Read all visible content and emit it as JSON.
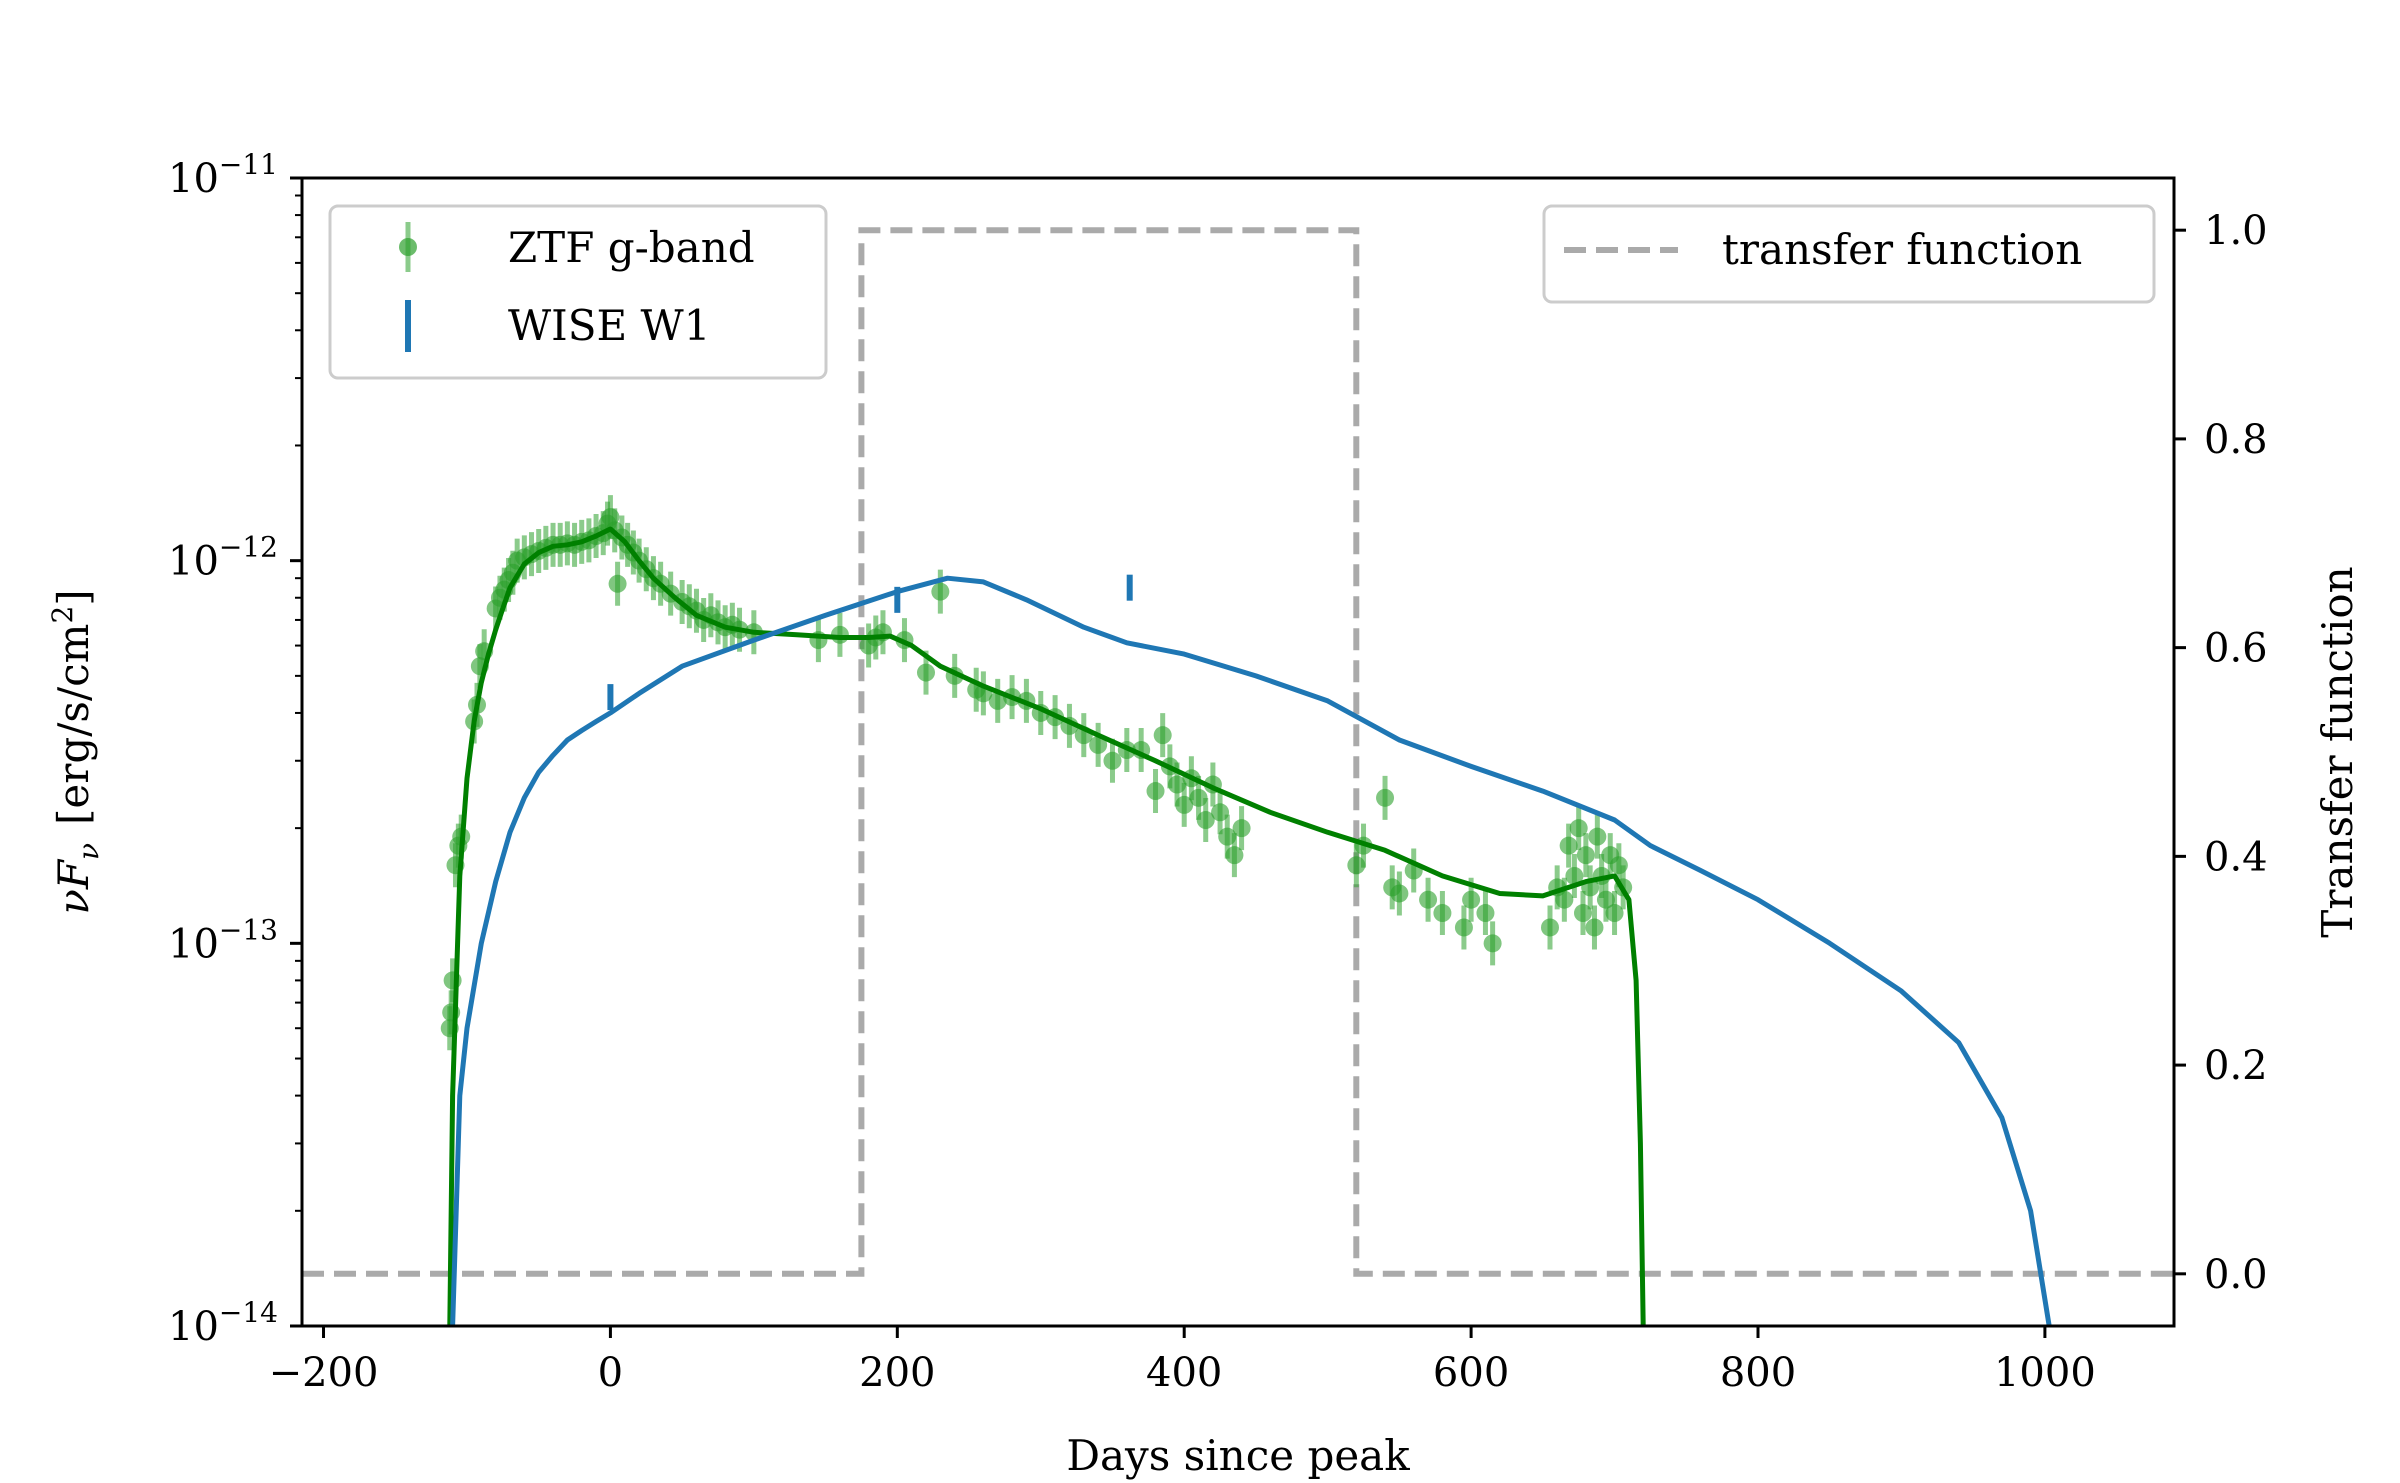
{
  "chart_data": {
    "type": "scatter",
    "x_axis": {
      "label": "Days since peak",
      "range": [
        -215,
        1090
      ],
      "ticks": [
        -200,
        0,
        200,
        400,
        600,
        800,
        1000
      ],
      "tick_labels": [
        "−200",
        "0",
        "200",
        "400",
        "600",
        "800",
        "1000"
      ]
    },
    "y_left": {
      "label_main": "νF",
      "label_sub": "ν",
      "label_units": "[erg/s/cm",
      "label_units_sup": "2",
      "label_units_end": "]",
      "scale": "log",
      "range": [
        1e-14,
        1e-11
      ],
      "ticks": [
        {
          "value": 1e-14,
          "base": "10",
          "exp": "−14"
        },
        {
          "value": 1e-13,
          "base": "10",
          "exp": "−13"
        },
        {
          "value": 1e-12,
          "base": "10",
          "exp": "−12"
        },
        {
          "value": 1e-11,
          "base": "10",
          "exp": "−11"
        }
      ]
    },
    "y_right": {
      "label": "Transfer function",
      "range": [
        -0.05,
        1.05
      ],
      "ticks": [
        0.0,
        0.2,
        0.4,
        0.6,
        0.8,
        1.0
      ],
      "tick_labels": [
        "0.0",
        "0.2",
        "0.4",
        "0.6",
        "0.8",
        "1.0"
      ]
    },
    "legends": {
      "left": [
        {
          "label": "ZTF g-band",
          "color": "#2ca02c",
          "marker": "point-errorbar"
        },
        {
          "label": "WISE W1",
          "color": "#1f77b4",
          "marker": "errorbar-only"
        }
      ],
      "right": [
        {
          "label": "transfer function",
          "color": "#aaaaaa",
          "marker": "dashed-line"
        }
      ]
    },
    "colors": {
      "ztf": "#2ca02c",
      "ztf_model": "#008000",
      "wise": "#1f77b4",
      "transfer": "#aaaaaa"
    },
    "series": [
      {
        "name": "ZTF g-band",
        "kind": "points",
        "axis": "left",
        "points": [
          [
            -112,
            6e-14
          ],
          [
            -111,
            6.6e-14
          ],
          [
            -110,
            8e-14
          ],
          [
            -108,
            1.6e-13
          ],
          [
            -106,
            1.8e-13
          ],
          [
            -104,
            1.9e-13
          ],
          [
            -95,
            3.8e-13
          ],
          [
            -93,
            4.2e-13
          ],
          [
            -91,
            5.3e-13
          ],
          [
            -88,
            5.8e-13
          ],
          [
            -80,
            7.5e-13
          ],
          [
            -77,
            8e-13
          ],
          [
            -74,
            8.4e-13
          ],
          [
            -71,
            8.9e-13
          ],
          [
            -68,
            9.3e-13
          ],
          [
            -65,
            1e-12
          ],
          [
            -60,
            1.02e-12
          ],
          [
            -55,
            1.04e-12
          ],
          [
            -50,
            1.06e-12
          ],
          [
            -45,
            1.08e-12
          ],
          [
            -40,
            1.1e-12
          ],
          [
            -35,
            1.1e-12
          ],
          [
            -30,
            1.11e-12
          ],
          [
            -25,
            1.1e-12
          ],
          [
            -20,
            1.12e-12
          ],
          [
            -15,
            1.13e-12
          ],
          [
            -10,
            1.16e-12
          ],
          [
            -5,
            1.18e-12
          ],
          [
            -2,
            1.25e-12
          ],
          [
            0,
            1.3e-12
          ],
          [
            3,
            1.2e-12
          ],
          [
            5,
            8.7e-13
          ],
          [
            8,
            1.15e-12
          ],
          [
            12,
            1.1e-12
          ],
          [
            16,
            1.05e-12
          ],
          [
            20,
            1e-12
          ],
          [
            25,
            9.5e-13
          ],
          [
            30,
            9e-13
          ],
          [
            35,
            8.7e-13
          ],
          [
            42,
            8.2e-13
          ],
          [
            50,
            7.8e-13
          ],
          [
            55,
            7.6e-13
          ],
          [
            60,
            7.4e-13
          ],
          [
            65,
            7e-13
          ],
          [
            70,
            7.2e-13
          ],
          [
            75,
            6.9e-13
          ],
          [
            80,
            6.7e-13
          ],
          [
            85,
            6.8e-13
          ],
          [
            90,
            6.6e-13
          ],
          [
            100,
            6.5e-13
          ],
          [
            145,
            6.2e-13
          ],
          [
            160,
            6.4e-13
          ],
          [
            180,
            6e-13
          ],
          [
            185,
            6.3e-13
          ],
          [
            190,
            6.5e-13
          ],
          [
            205,
            6.2e-13
          ],
          [
            220,
            5.1e-13
          ],
          [
            230,
            8.3e-13
          ],
          [
            240,
            5e-13
          ],
          [
            255,
            4.6e-13
          ],
          [
            260,
            4.5e-13
          ],
          [
            270,
            4.3e-13
          ],
          [
            280,
            4.4e-13
          ],
          [
            290,
            4.3e-13
          ],
          [
            300,
            4e-13
          ],
          [
            310,
            3.9e-13
          ],
          [
            320,
            3.7e-13
          ],
          [
            330,
            3.5e-13
          ],
          [
            340,
            3.3e-13
          ],
          [
            350,
            3e-13
          ],
          [
            360,
            3.2e-13
          ],
          [
            370,
            3.2e-13
          ],
          [
            380,
            2.5e-13
          ],
          [
            385,
            3.5e-13
          ],
          [
            390,
            2.9e-13
          ],
          [
            395,
            2.6e-13
          ],
          [
            400,
            2.3e-13
          ],
          [
            405,
            2.7e-13
          ],
          [
            410,
            2.4e-13
          ],
          [
            415,
            2.1e-13
          ],
          [
            420,
            2.6e-13
          ],
          [
            425,
            2.2e-13
          ],
          [
            430,
            1.9e-13
          ],
          [
            435,
            1.7e-13
          ],
          [
            440,
            2e-13
          ],
          [
            520,
            1.6e-13
          ],
          [
            525,
            1.8e-13
          ],
          [
            540,
            2.4e-13
          ],
          [
            545,
            1.4e-13
          ],
          [
            550,
            1.35e-13
          ],
          [
            560,
            1.55e-13
          ],
          [
            570,
            1.3e-13
          ],
          [
            580,
            1.2e-13
          ],
          [
            595,
            1.1e-13
          ],
          [
            600,
            1.3e-13
          ],
          [
            610,
            1.2e-13
          ],
          [
            615,
            1e-13
          ],
          [
            655,
            1.1e-13
          ],
          [
            660,
            1.4e-13
          ],
          [
            665,
            1.3e-13
          ],
          [
            668,
            1.8e-13
          ],
          [
            672,
            1.5e-13
          ],
          [
            675,
            2e-13
          ],
          [
            678,
            1.2e-13
          ],
          [
            680,
            1.7e-13
          ],
          [
            683,
            1.4e-13
          ],
          [
            686,
            1.1e-13
          ],
          [
            688,
            1.9e-13
          ],
          [
            691,
            1.5e-13
          ],
          [
            694,
            1.3e-13
          ],
          [
            697,
            1.7e-13
          ],
          [
            700,
            1.2e-13
          ],
          [
            703,
            1.6e-13
          ],
          [
            706,
            1.4e-13
          ]
        ]
      },
      {
        "name": "ZTF g-band model",
        "kind": "line",
        "axis": "left",
        "points": [
          [
            -112,
            1e-14
          ],
          [
            -110,
            4e-14
          ],
          [
            -105,
            1.5e-13
          ],
          [
            -100,
            2.7e-13
          ],
          [
            -95,
            3.8e-13
          ],
          [
            -90,
            4.8e-13
          ],
          [
            -85,
            5.7e-13
          ],
          [
            -80,
            6.6e-13
          ],
          [
            -75,
            7.5e-13
          ],
          [
            -70,
            8.5e-13
          ],
          [
            -60,
            9.8e-13
          ],
          [
            -50,
            1.05e-12
          ],
          [
            -40,
            1.09e-12
          ],
          [
            -30,
            1.1e-12
          ],
          [
            -20,
            1.12e-12
          ],
          [
            -10,
            1.16e-12
          ],
          [
            0,
            1.21e-12
          ],
          [
            10,
            1.12e-12
          ],
          [
            20,
            1e-12
          ],
          [
            30,
            9e-13
          ],
          [
            45,
            8e-13
          ],
          [
            60,
            7.2e-13
          ],
          [
            80,
            6.7e-13
          ],
          [
            100,
            6.5e-13
          ],
          [
            130,
            6.4e-13
          ],
          [
            160,
            6.3e-13
          ],
          [
            180,
            6.3e-13
          ],
          [
            195,
            6.35e-13
          ],
          [
            210,
            6e-13
          ],
          [
            230,
            5.3e-13
          ],
          [
            260,
            4.7e-13
          ],
          [
            300,
            4.1e-13
          ],
          [
            340,
            3.5e-13
          ],
          [
            380,
            3e-13
          ],
          [
            420,
            2.55e-13
          ],
          [
            460,
            2.2e-13
          ],
          [
            500,
            1.95e-13
          ],
          [
            540,
            1.75e-13
          ],
          [
            580,
            1.5e-13
          ],
          [
            620,
            1.35e-13
          ],
          [
            650,
            1.33e-13
          ],
          [
            680,
            1.45e-13
          ],
          [
            700,
            1.5e-13
          ],
          [
            710,
            1.3e-13
          ],
          [
            715,
            8e-14
          ],
          [
            718,
            3e-14
          ],
          [
            720,
            1e-14
          ]
        ]
      },
      {
        "name": "WISE W1",
        "kind": "errorbars",
        "axis": "left",
        "points": [
          [
            0,
            4.4e-13
          ],
          [
            200,
            7.9e-13
          ],
          [
            362,
            8.5e-13
          ]
        ]
      },
      {
        "name": "WISE W1 model",
        "kind": "line",
        "axis": "left",
        "points": [
          [
            -110,
            1e-14
          ],
          [
            -105,
            4e-14
          ],
          [
            -100,
            6e-14
          ],
          [
            -90,
            1e-13
          ],
          [
            -80,
            1.45e-13
          ],
          [
            -70,
            1.95e-13
          ],
          [
            -60,
            2.4e-13
          ],
          [
            -50,
            2.8e-13
          ],
          [
            -40,
            3.1e-13
          ],
          [
            -30,
            3.4e-13
          ],
          [
            -20,
            3.6e-13
          ],
          [
            -10,
            3.8e-13
          ],
          [
            0,
            4e-13
          ],
          [
            20,
            4.5e-13
          ],
          [
            50,
            5.3e-13
          ],
          [
            100,
            6.2e-13
          ],
          [
            150,
            7.2e-13
          ],
          [
            200,
            8.3e-13
          ],
          [
            235,
            9e-13
          ],
          [
            260,
            8.8e-13
          ],
          [
            290,
            7.9e-13
          ],
          [
            330,
            6.7e-13
          ],
          [
            360,
            6.1e-13
          ],
          [
            400,
            5.7e-13
          ],
          [
            450,
            5e-13
          ],
          [
            500,
            4.3e-13
          ],
          [
            550,
            3.4e-13
          ],
          [
            600,
            2.9e-13
          ],
          [
            650,
            2.5e-13
          ],
          [
            700,
            2.1e-13
          ],
          [
            725,
            1.8e-13
          ],
          [
            760,
            1.55e-13
          ],
          [
            800,
            1.3e-13
          ],
          [
            850,
            1e-13
          ],
          [
            900,
            7.5e-14
          ],
          [
            940,
            5.5e-14
          ],
          [
            970,
            3.5e-14
          ],
          [
            990,
            2e-14
          ],
          [
            1003,
            1e-14
          ]
        ]
      },
      {
        "name": "transfer function",
        "kind": "step",
        "axis": "right",
        "points": [
          [
            -215,
            0.0
          ],
          [
            175,
            0.0
          ],
          [
            175,
            1.0
          ],
          [
            520,
            1.0
          ],
          [
            520,
            0.0
          ],
          [
            1090,
            0.0
          ]
        ]
      }
    ]
  }
}
